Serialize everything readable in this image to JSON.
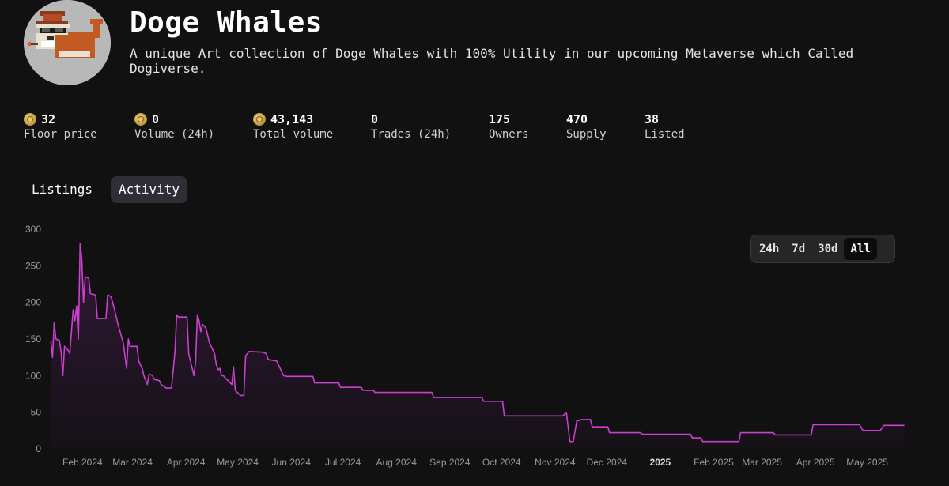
{
  "collection": {
    "name": "Doge Whales",
    "description": "A unique Art collection of Doge Whales with 100% Utility in our upcoming Metaverse which Called Dogiverse.",
    "avatar_icon": "doge-whale-pixel-avatar"
  },
  "stats": [
    {
      "value": "32",
      "label": "Floor price",
      "icon": "doge-coin-icon"
    },
    {
      "value": "0",
      "label": "Volume (24h)",
      "icon": "doge-coin-icon"
    },
    {
      "value": "43,143",
      "label": "Total volume",
      "icon": "doge-coin-icon"
    },
    {
      "value": "0",
      "label": "Trades (24h)"
    },
    {
      "value": "175",
      "label": "Owners"
    },
    {
      "value": "470",
      "label": "Supply"
    },
    {
      "value": "38",
      "label": "Listed"
    }
  ],
  "tabs": [
    {
      "label": "Listings",
      "active": false
    },
    {
      "label": "Activity",
      "active": true
    }
  ],
  "time_range": {
    "options": [
      "24h",
      "7d",
      "30d",
      "All"
    ],
    "selected": "All"
  },
  "colors": {
    "line": "#cc3fcf",
    "fill": "#2a1630",
    "background": "#111111"
  },
  "chart_data": {
    "type": "line",
    "title": "",
    "xlabel": "",
    "ylabel": "",
    "ylim": [
      0,
      300
    ],
    "yticks": [
      0,
      50,
      100,
      150,
      200,
      250,
      300
    ],
    "xlim": [
      "2024-01-19",
      "2025-05-31"
    ],
    "xticks": [
      {
        "label": "Feb 2024",
        "date": "2024-02-01"
      },
      {
        "label": "Mar 2024",
        "date": "2024-03-01"
      },
      {
        "label": "Apr 2024",
        "date": "2024-04-01"
      },
      {
        "label": "May 2024",
        "date": "2024-05-01"
      },
      {
        "label": "Jun 2024",
        "date": "2024-06-01"
      },
      {
        "label": "Jul 2024",
        "date": "2024-07-01"
      },
      {
        "label": "Aug 2024",
        "date": "2024-08-01"
      },
      {
        "label": "Sep 2024",
        "date": "2024-09-01"
      },
      {
        "label": "Oct 2024",
        "date": "2024-10-01"
      },
      {
        "label": "Nov 2024",
        "date": "2024-11-01"
      },
      {
        "label": "Dec 2024",
        "date": "2024-12-01"
      },
      {
        "label": "2025",
        "date": "2025-01-01",
        "bold": true
      },
      {
        "label": "Feb 2025",
        "date": "2025-02-01"
      },
      {
        "label": "Mar 2025",
        "date": "2025-03-01"
      },
      {
        "label": "Apr 2025",
        "date": "2025-04-01"
      },
      {
        "label": "May 2025",
        "date": "2025-05-01"
      }
    ],
    "grid": false,
    "legend": "none",
    "series": [
      {
        "points": [
          [
            "2024-01-20",
            148
          ],
          [
            "2024-01-21",
            125
          ],
          [
            "2024-01-22",
            172
          ],
          [
            "2024-01-23",
            150
          ],
          [
            "2024-01-25",
            148
          ],
          [
            "2024-01-26",
            132
          ],
          [
            "2024-01-27",
            100
          ],
          [
            "2024-01-28",
            140
          ],
          [
            "2024-01-30",
            135
          ],
          [
            "2024-01-31",
            130
          ],
          [
            "2024-02-02",
            190
          ],
          [
            "2024-02-03",
            175
          ],
          [
            "2024-02-04",
            195
          ],
          [
            "2024-02-05",
            150
          ],
          [
            "2024-02-06",
            280
          ],
          [
            "2024-02-07",
            260
          ],
          [
            "2024-02-08",
            200
          ],
          [
            "2024-02-09",
            235
          ],
          [
            "2024-02-11",
            233
          ],
          [
            "2024-02-12",
            212
          ],
          [
            "2024-02-15",
            210
          ],
          [
            "2024-02-16",
            178
          ],
          [
            "2024-02-21",
            178
          ],
          [
            "2024-02-22",
            210
          ],
          [
            "2024-02-24",
            208
          ],
          [
            "2024-02-26",
            190
          ],
          [
            "2024-02-28",
            170
          ],
          [
            "2024-03-02",
            145
          ],
          [
            "2024-03-04",
            110
          ],
          [
            "2024-03-05",
            150
          ],
          [
            "2024-03-06",
            140
          ],
          [
            "2024-03-10",
            140
          ],
          [
            "2024-03-11",
            120
          ],
          [
            "2024-03-13",
            110
          ],
          [
            "2024-03-14",
            100
          ],
          [
            "2024-03-16",
            88
          ],
          [
            "2024-03-17",
            102
          ],
          [
            "2024-03-19",
            100
          ],
          [
            "2024-03-20",
            95
          ],
          [
            "2024-03-23",
            93
          ],
          [
            "2024-03-24",
            88
          ],
          [
            "2024-03-27",
            83
          ],
          [
            "2024-03-30",
            83
          ],
          [
            "2024-04-01",
            132
          ],
          [
            "2024-04-02",
            183
          ],
          [
            "2024-04-03",
            180
          ],
          [
            "2024-04-08",
            180
          ],
          [
            "2024-04-09",
            130
          ],
          [
            "2024-04-11",
            110
          ],
          [
            "2024-04-12",
            100
          ],
          [
            "2024-04-13",
            120
          ],
          [
            "2024-04-14",
            183
          ],
          [
            "2024-04-15",
            175
          ],
          [
            "2024-04-16",
            160
          ],
          [
            "2024-04-17",
            170
          ],
          [
            "2024-04-19",
            165
          ],
          [
            "2024-04-21",
            145
          ],
          [
            "2024-04-22",
            140
          ],
          [
            "2024-04-24",
            130
          ],
          [
            "2024-04-25",
            115
          ],
          [
            "2024-04-26",
            108
          ],
          [
            "2024-04-27",
            110
          ],
          [
            "2024-04-28",
            100
          ],
          [
            "2024-04-29",
            100
          ],
          [
            "2024-05-01",
            95
          ],
          [
            "2024-05-04",
            88
          ],
          [
            "2024-05-05",
            112
          ],
          [
            "2024-05-06",
            80
          ],
          [
            "2024-05-08",
            75
          ],
          [
            "2024-05-09",
            73
          ],
          [
            "2024-05-11",
            73
          ],
          [
            "2024-05-12",
            127
          ],
          [
            "2024-05-14",
            133
          ],
          [
            "2024-05-22",
            132
          ],
          [
            "2024-05-24",
            130
          ],
          [
            "2024-05-25",
            122
          ],
          [
            "2024-05-30",
            120
          ],
          [
            "2024-06-01",
            110
          ],
          [
            "2024-06-03",
            100
          ],
          [
            "2024-06-05",
            99
          ],
          [
            "2024-06-20",
            99
          ],
          [
            "2024-06-21",
            90
          ],
          [
            "2024-07-05",
            90
          ],
          [
            "2024-07-06",
            84
          ],
          [
            "2024-07-18",
            84
          ],
          [
            "2024-07-19",
            80
          ],
          [
            "2024-07-25",
            80
          ],
          [
            "2024-07-26",
            77
          ],
          [
            "2024-08-28",
            77
          ],
          [
            "2024-08-29",
            70
          ],
          [
            "2024-09-26",
            70
          ],
          [
            "2024-09-27",
            65
          ],
          [
            "2024-10-08",
            65
          ],
          [
            "2024-10-09",
            45
          ],
          [
            "2024-11-12",
            45
          ],
          [
            "2024-11-14",
            50
          ],
          [
            "2024-11-16",
            10
          ],
          [
            "2024-11-18",
            10
          ],
          [
            "2024-11-20",
            38
          ],
          [
            "2024-11-23",
            40
          ],
          [
            "2024-11-28",
            40
          ],
          [
            "2024-11-29",
            30
          ],
          [
            "2024-12-01",
            30
          ],
          [
            "2024-12-08",
            30
          ],
          [
            "2024-12-09",
            22
          ],
          [
            "2024-12-27",
            22
          ],
          [
            "2024-12-28",
            20
          ],
          [
            "2025-01-25",
            20
          ],
          [
            "2025-01-26",
            15
          ],
          [
            "2025-01-31",
            15
          ],
          [
            "2025-02-01",
            10
          ],
          [
            "2025-02-22",
            10
          ],
          [
            "2025-02-23",
            22
          ],
          [
            "2025-03-14",
            22
          ],
          [
            "2025-03-15",
            19
          ],
          [
            "2025-04-05",
            19
          ],
          [
            "2025-04-06",
            33
          ],
          [
            "2025-05-03",
            33
          ],
          [
            "2025-05-05",
            25
          ],
          [
            "2025-05-15",
            25
          ],
          [
            "2025-05-17",
            32
          ],
          [
            "2025-05-29",
            32
          ]
        ]
      }
    ]
  }
}
